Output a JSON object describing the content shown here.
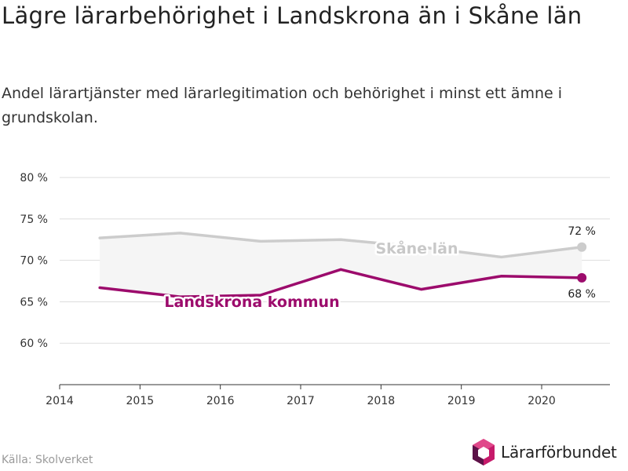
{
  "title": "Lägre lärarbehörighet i Landskrona än i Skåne län",
  "subtitle": "Andel lärartjänster med lärarlegitimation och behörighet i minst ett ämne i grundskolan.",
  "source": "Källa: Skolverket",
  "logo_text": "Lärarförbundet",
  "colors": {
    "landskrona": "#9c0b6c",
    "skane": "#cccccc",
    "skane_label": "#c8c8c8",
    "band": "#f5f5f5",
    "grid": "#dddddd",
    "axis": "#333333",
    "logo_accent": "#c61a6a",
    "logo_dark": "#5c1248"
  },
  "chart_data": {
    "type": "line",
    "x": [
      2014.5,
      2015.5,
      2016.5,
      2017.5,
      2018.5,
      2019.5,
      2020.5
    ],
    "series": [
      {
        "name": "Skåne län",
        "key": "skane",
        "values": [
          72.7,
          73.3,
          72.3,
          72.5,
          71.6,
          70.4,
          71.6
        ]
      },
      {
        "name": "Landskrona kommun",
        "key": "landskrona",
        "values": [
          66.7,
          65.6,
          65.8,
          68.9,
          66.5,
          68.1,
          67.9
        ]
      }
    ],
    "end_labels": {
      "skane": "72 %",
      "landskrona": "68 %"
    },
    "xlim": [
      2014,
      2020.85
    ],
    "ylim": [
      55,
      82
    ],
    "xticks": [
      2014,
      2015,
      2016,
      2017,
      2018,
      2019,
      2020
    ],
    "xtick_labels": [
      "2014",
      "2015",
      "2016",
      "2017",
      "2018",
      "2019",
      "2020"
    ],
    "yticks": [
      60,
      65,
      70,
      75,
      80
    ],
    "ytick_labels": [
      "60 %",
      "65 %",
      "70 %",
      "75 %",
      "80 %"
    ],
    "grid": true,
    "shaded_band_between_series": true
  }
}
